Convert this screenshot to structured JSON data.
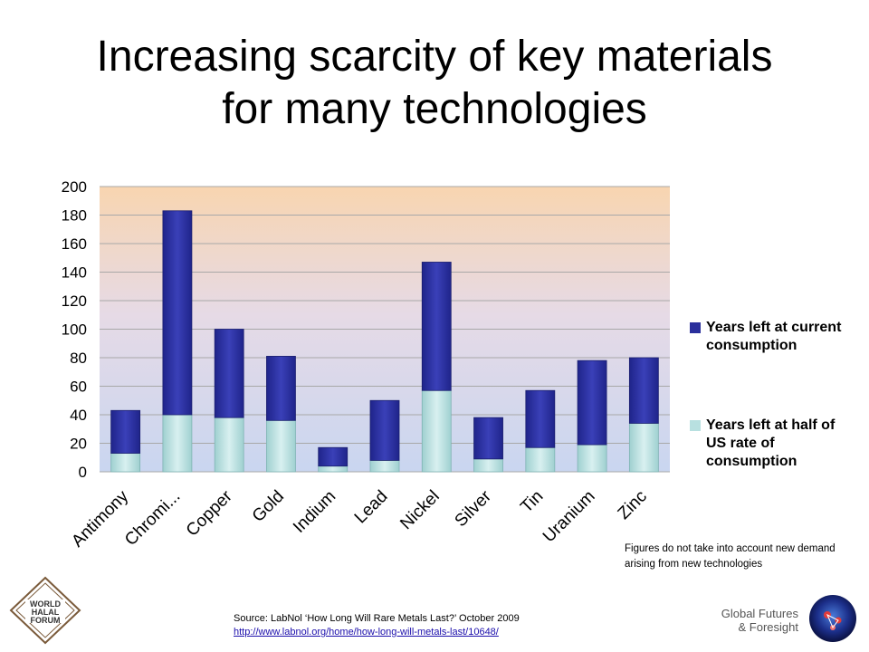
{
  "slide": {
    "title_line1": "Increasing scarcity of key materials",
    "title_line2": "for many technologies",
    "note": "Figures do not take into account new demand arising from new technologies",
    "source_text": "Source: LabNol ‘How Long Will Rare Metals Last?’ October 2009",
    "source_link": "http://www.labnol.org/home/how-long-will-metals-last/10648/",
    "brand_line1": "Global Futures",
    "brand_line2": "& Foresight",
    "logo_text": [
      "WORLD",
      "HALAL",
      "FORUM"
    ]
  },
  "chart_data": {
    "type": "bar",
    "stacked": true,
    "categories": [
      "Antimony",
      "Chromi...",
      "Copper",
      "Gold",
      "Indium",
      "Lead",
      "Nickel",
      "Silver",
      "Tin",
      "Uranium",
      "Zinc"
    ],
    "series": [
      {
        "name": "Years left at half of US rate of consumption",
        "values": [
          13,
          40,
          38,
          36,
          4,
          8,
          57,
          9,
          17,
          19,
          34
        ],
        "color": "#b8e0e0"
      },
      {
        "name": "Years left at current consumption",
        "values": [
          30,
          143,
          62,
          45,
          13,
          42,
          90,
          29,
          40,
          59,
          46
        ],
        "color": "#2a2f9c"
      }
    ],
    "ylim": [
      0,
      200
    ],
    "yticks": [
      0,
      20,
      40,
      60,
      80,
      100,
      120,
      140,
      160,
      180,
      200
    ],
    "grid": true,
    "legend_position": "right",
    "background_gradient": [
      "#f8d5b0",
      "#c9d6f0"
    ]
  }
}
